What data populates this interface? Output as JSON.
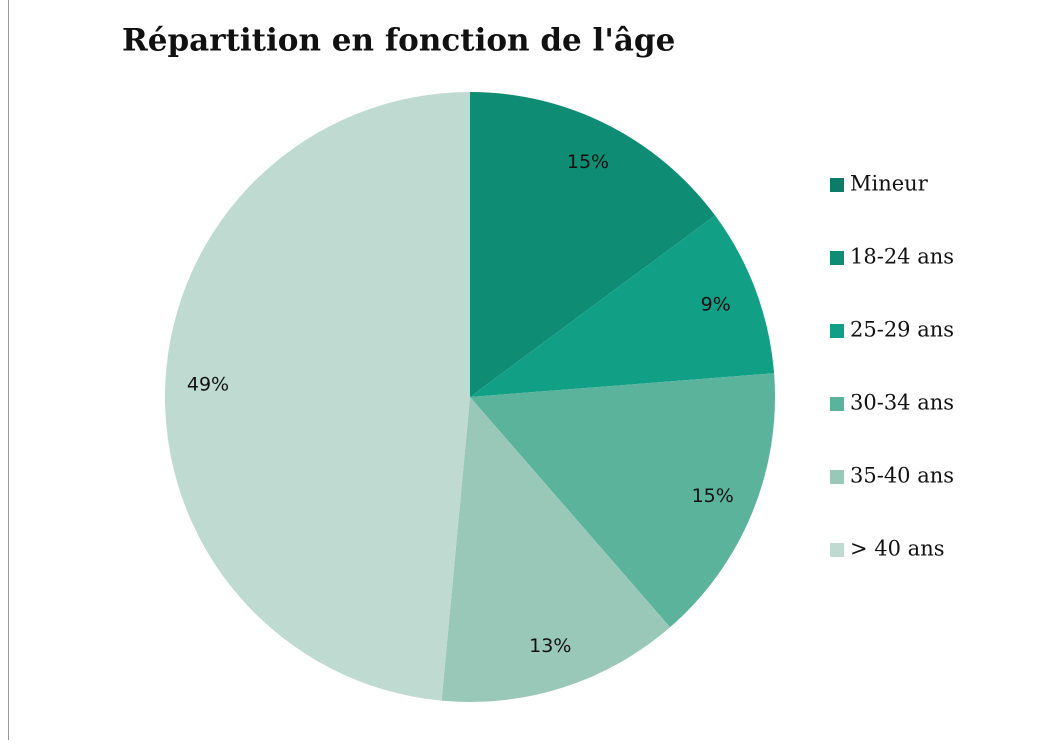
{
  "chart_data": {
    "type": "pie",
    "title": "Répartition en fonction de l'âge",
    "categories": [
      "Mineur",
      "18-24 ans",
      "25-29 ans",
      "30-34 ans",
      "35-40 ans",
      "> 40 ans"
    ],
    "values": [
      0,
      15,
      9,
      15,
      13,
      49
    ],
    "value_labels": [
      null,
      "15%",
      "9%",
      "15%",
      "13%",
      "49%"
    ],
    "colors": [
      "#0b7c68",
      "#0f8c74",
      "#11a085",
      "#5bb39c",
      "#9ac8b8",
      "#bfdad1"
    ],
    "legend": "right"
  }
}
